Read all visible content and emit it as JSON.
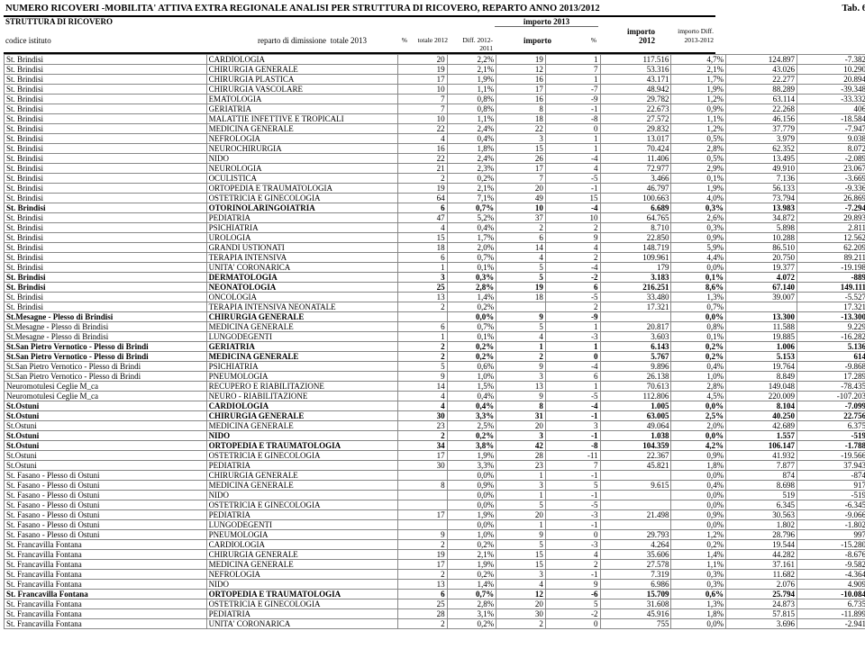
{
  "title": "NUMERO RICOVERI -MOBILITA' ATTIVA EXTRA REGIONALE ANALISI PER STRUTTURA DI RICOVERO, REPARTO ANNO 2013/2012",
  "tab": "Tab. 6",
  "header": {
    "struttura": "STRUTTURA DI RICOVERO",
    "importo2013": "importo 2013",
    "codice": "codice istituto",
    "reparto": "reparto di dimissione",
    "tot2013": "totale 2013",
    "pct": "%",
    "tot2012": "totale 2012",
    "diff": "Diff. 2012-2011",
    "importo": "importo",
    "pctimp": "%",
    "imp2012": "importo 2012",
    "impdiff": "importo Diff. 2013-2012"
  },
  "bold_rows": [
    16,
    23,
    24,
    27,
    30,
    31,
    36,
    37,
    39,
    40,
    55,
    59,
    61
  ],
  "rows": [
    [
      "St. Brindisi",
      "CARDIOLOGIA",
      "20",
      "2,2%",
      "19",
      "1",
      "117.516",
      "4,7%",
      "124.897",
      "-7.382"
    ],
    [
      "St. Brindisi",
      "CHIRURGIA GENERALE",
      "19",
      "2,1%",
      "12",
      "7",
      "53.316",
      "2,1%",
      "43.026",
      "10.290"
    ],
    [
      "St. Brindisi",
      "CHIRURGIA PLASTICA",
      "17",
      "1,9%",
      "16",
      "1",
      "43.171",
      "1,7%",
      "22.277",
      "20.894"
    ],
    [
      "St. Brindisi",
      "CHIRURGIA VASCOLARE",
      "10",
      "1,1%",
      "17",
      "-7",
      "48.942",
      "1,9%",
      "88.289",
      "-39.348"
    ],
    [
      "St. Brindisi",
      "EMATOLOGIA",
      "7",
      "0,8%",
      "16",
      "-9",
      "29.782",
      "1,2%",
      "63.114",
      "-33.332"
    ],
    [
      "St. Brindisi",
      "GERIATRIA",
      "7",
      "0,8%",
      "8",
      "-1",
      "22.673",
      "0,9%",
      "22.268",
      "406"
    ],
    [
      "St. Brindisi",
      "MALATTIE INFETTIVE E TROPICALI",
      "10",
      "1,1%",
      "18",
      "-8",
      "27.572",
      "1,1%",
      "46.156",
      "-18.584"
    ],
    [
      "St. Brindisi",
      "MEDICINA GENERALE",
      "22",
      "2,4%",
      "22",
      "0",
      "29.832",
      "1,2%",
      "37.779",
      "-7.947"
    ],
    [
      "St. Brindisi",
      "NEFROLOGIA",
      "4",
      "0,4%",
      "3",
      "1",
      "13.017",
      "0,5%",
      "3.979",
      "9.038"
    ],
    [
      "St. Brindisi",
      "NEUROCHIRURGIA",
      "16",
      "1,8%",
      "15",
      "1",
      "70.424",
      "2,8%",
      "62.352",
      "8.072"
    ],
    [
      "St. Brindisi",
      "NIDO",
      "22",
      "2,4%",
      "26",
      "-4",
      "11.406",
      "0,5%",
      "13.495",
      "-2.089"
    ],
    [
      "St. Brindisi",
      "NEUROLOGIA",
      "21",
      "2,3%",
      "17",
      "4",
      "72.977",
      "2,9%",
      "49.910",
      "23.067"
    ],
    [
      "St. Brindisi",
      "OCULISTICA",
      "2",
      "0,2%",
      "7",
      "-5",
      "3.466",
      "0,1%",
      "7.136",
      "-3.669"
    ],
    [
      "St. Brindisi",
      "ORTOPEDIA E TRAUMATOLOGIA",
      "19",
      "2,1%",
      "20",
      "-1",
      "46.797",
      "1,9%",
      "56.133",
      "-9.336"
    ],
    [
      "St. Brindisi",
      "OSTETRICIA E GINECOLOGIA",
      "64",
      "7,1%",
      "49",
      "15",
      "100.663",
      "4,0%",
      "73.794",
      "26.869"
    ],
    [
      "St. Brindisi",
      "OTORINOLARINGOIATRIA",
      "6",
      "0,7%",
      "10",
      "-4",
      "6.689",
      "0,3%",
      "13.983",
      "-7.294"
    ],
    [
      "St. Brindisi",
      "PEDIATRIA",
      "47",
      "5,2%",
      "37",
      "10",
      "64.765",
      "2,6%",
      "34.872",
      "29.893"
    ],
    [
      "St. Brindisi",
      "PSICHIATRIA",
      "4",
      "0,4%",
      "2",
      "2",
      "8.710",
      "0,3%",
      "5.898",
      "2.811"
    ],
    [
      "St. Brindisi",
      "UROLOGIA",
      "15",
      "1,7%",
      "6",
      "9",
      "22.850",
      "0,9%",
      "10.288",
      "12.562"
    ],
    [
      "St. Brindisi",
      "GRANDI USTIONATI",
      "18",
      "2,0%",
      "14",
      "4",
      "148.719",
      "5,9%",
      "86.510",
      "62.209"
    ],
    [
      "St. Brindisi",
      "TERAPIA INTENSIVA",
      "6",
      "0,7%",
      "4",
      "2",
      "109.961",
      "4,4%",
      "20.750",
      "89.211"
    ],
    [
      "St. Brindisi",
      "UNITA' CORONARICA",
      "1",
      "0,1%",
      "5",
      "-4",
      "179",
      "0,0%",
      "19.377",
      "-19.198"
    ],
    [
      "St. Brindisi",
      "DERMATOLOGIA",
      "3",
      "0,3%",
      "5",
      "-2",
      "3.183",
      "0,1%",
      "4.072",
      "-889"
    ],
    [
      "St. Brindisi",
      "NEONATOLOGIA",
      "25",
      "2,8%",
      "19",
      "6",
      "216.251",
      "8,6%",
      "67.140",
      "149.111"
    ],
    [
      "St. Brindisi",
      "ONCOLOGIA",
      "13",
      "1,4%",
      "18",
      "-5",
      "33.480",
      "1,3%",
      "39.007",
      "-5.527"
    ],
    [
      "St. Brindisi",
      "TERAPIA INTENSIVA NEONATALE",
      "2",
      "0,2%",
      "",
      "2",
      "17.321",
      "0,7%",
      "",
      "17.321"
    ],
    [
      "St.Mesagne - Plesso di Brindisi",
      "CHIRURGIA GENERALE",
      "",
      "0,0%",
      "9",
      "-9",
      "",
      "0,0%",
      "13.300",
      "-13.300"
    ],
    [
      "St.Mesagne - Plesso di Brindisi",
      "MEDICINA GENERALE",
      "6",
      "0,7%",
      "5",
      "1",
      "20.817",
      "0,8%",
      "11.588",
      "9.229"
    ],
    [
      "St.Mesagne - Plesso di Brindisi",
      "LUNGODEGENTI",
      "1",
      "0,1%",
      "4",
      "-3",
      "3.603",
      "0,1%",
      "19.885",
      "-16.282"
    ],
    [
      "St.San Pietro Vernotico - Plesso di Brindi",
      "GERIATRIA",
      "2",
      "0,2%",
      "1",
      "1",
      "6.143",
      "0,2%",
      "1.006",
      "5.136"
    ],
    [
      "St.San Pietro Vernotico - Plesso di Brindi",
      "MEDICINA GENERALE",
      "2",
      "0,2%",
      "2",
      "0",
      "5.767",
      "0,2%",
      "5.153",
      "614"
    ],
    [
      "St.San Pietro Vernotico - Plesso di Brindi",
      "PSICHIATRIA",
      "5",
      "0,6%",
      "9",
      "-4",
      "9.896",
      "0,4%",
      "19.764",
      "-9.868"
    ],
    [
      "St.San Pietro Vernotico - Plesso di Brindi",
      "PNEUMOLOGIA",
      "9",
      "1,0%",
      "3",
      "6",
      "26.138",
      "1,0%",
      "8.849",
      "17.289"
    ],
    [
      "Neuromotulesi Ceglie M_ca",
      "RECUPERO E RIABILITAZIONE",
      "14",
      "1,5%",
      "13",
      "1",
      "70.613",
      "2,8%",
      "149.048",
      "-78.435"
    ],
    [
      "Neuromotulesi Ceglie M_ca",
      "NEURO - RIABILITAZIONE",
      "4",
      "0,4%",
      "9",
      "-5",
      "112.806",
      "4,5%",
      "220.009",
      "-107.203"
    ],
    [
      "St.Ostuni",
      "CARDIOLOGIA",
      "4",
      "0,4%",
      "8",
      "-4",
      "1.005",
      "0,0%",
      "8.104",
      "-7.099"
    ],
    [
      "St.Ostuni",
      "CHIRURGIA GENERALE",
      "30",
      "3,3%",
      "31",
      "-1",
      "63.005",
      "2,5%",
      "40.250",
      "22.756"
    ],
    [
      "St.Ostuni",
      "MEDICINA GENERALE",
      "23",
      "2,5%",
      "20",
      "3",
      "49.064",
      "2,0%",
      "42.689",
      "6.375"
    ],
    [
      "St.Ostuni",
      "NIDO",
      "2",
      "0,2%",
      "3",
      "-1",
      "1.038",
      "0,0%",
      "1.557",
      "-519"
    ],
    [
      "St.Ostuni",
      "ORTOPEDIA E TRAUMATOLOGIA",
      "34",
      "3,8%",
      "42",
      "-8",
      "104.359",
      "4,2%",
      "106.147",
      "-1.788"
    ],
    [
      "St.Ostuni",
      "OSTETRICIA E GINECOLOGIA",
      "17",
      "1,9%",
      "28",
      "-11",
      "22.367",
      "0,9%",
      "41.932",
      "-19.566"
    ],
    [
      "St.Ostuni",
      "PEDIATRIA",
      "30",
      "3,3%",
      "23",
      "7",
      "45.821",
      "1,8%",
      "7.877",
      "37.943"
    ],
    [
      "St. Fasano - Plesso di Ostuni",
      "CHIRURGIA GENERALE",
      "",
      "0,0%",
      "1",
      "-1",
      "",
      "0,0%",
      "874",
      "-874"
    ],
    [
      "St. Fasano - Plesso di Ostuni",
      "MEDICINA GENERALE",
      "8",
      "0,9%",
      "3",
      "5",
      "9.615",
      "0,4%",
      "8.698",
      "917"
    ],
    [
      "St. Fasano - Plesso di Ostuni",
      "NIDO",
      "",
      "0,0%",
      "1",
      "-1",
      "",
      "0,0%",
      "519",
      "-519"
    ],
    [
      "St. Fasano - Plesso di Ostuni",
      "OSTETRICIA E GINECOLOGIA",
      "",
      "0,0%",
      "5",
      "-5",
      "",
      "0,0%",
      "6.345",
      "-6.345"
    ],
    [
      "St. Fasano - Plesso di Ostuni",
      "PEDIATRIA",
      "17",
      "1,9%",
      "20",
      "-3",
      "21.498",
      "0,9%",
      "30.563",
      "-9.066"
    ],
    [
      "St. Fasano - Plesso di Ostuni",
      "LUNGODEGENTI",
      "",
      "0,0%",
      "1",
      "-1",
      "",
      "0,0%",
      "1.802",
      "-1.802"
    ],
    [
      "St. Fasano - Plesso di Ostuni",
      "PNEUMOLOGIA",
      "9",
      "1,0%",
      "9",
      "0",
      "29.793",
      "1,2%",
      "28.796",
      "997"
    ],
    [
      "St. Francavilla Fontana",
      "CARDIOLOGIA",
      "2",
      "0,2%",
      "5",
      "-3",
      "4.264",
      "0,2%",
      "19.544",
      "-15.280"
    ],
    [
      "St. Francavilla Fontana",
      "CHIRURGIA GENERALE",
      "19",
      "2,1%",
      "15",
      "4",
      "35.606",
      "1,4%",
      "44.282",
      "-8.676"
    ],
    [
      "St. Francavilla Fontana",
      "MEDICINA GENERALE",
      "17",
      "1,9%",
      "15",
      "2",
      "27.578",
      "1,1%",
      "37.161",
      "-9.582"
    ],
    [
      "St. Francavilla Fontana",
      "NEFROLOGIA",
      "2",
      "0,2%",
      "3",
      "-1",
      "7.319",
      "0,3%",
      "11.682",
      "-4.364"
    ],
    [
      "St. Francavilla Fontana",
      "NIDO",
      "13",
      "1,4%",
      "4",
      "9",
      "6.986",
      "0,3%",
      "2.076",
      "4.909"
    ],
    [
      "St. Francavilla Fontana",
      "ORTOPEDIA E TRAUMATOLOGIA",
      "6",
      "0,7%",
      "12",
      "-6",
      "15.709",
      "0,6%",
      "25.794",
      "-10.084"
    ],
    [
      "St. Francavilla Fontana",
      "OSTETRICIA E GINECOLOGIA",
      "25",
      "2,8%",
      "20",
      "5",
      "31.608",
      "1,3%",
      "24.873",
      "6.735"
    ],
    [
      "St. Francavilla Fontana",
      "PEDIATRIA",
      "28",
      "3,1%",
      "30",
      "-2",
      "45.916",
      "1,8%",
      "57.815",
      "-11.899"
    ],
    [
      "St. Francavilla Fontana",
      "UNITA' CORONARICA",
      "2",
      "0,2%",
      "2",
      "0",
      "755",
      "0,0%",
      "3.696",
      "-2.941"
    ]
  ]
}
